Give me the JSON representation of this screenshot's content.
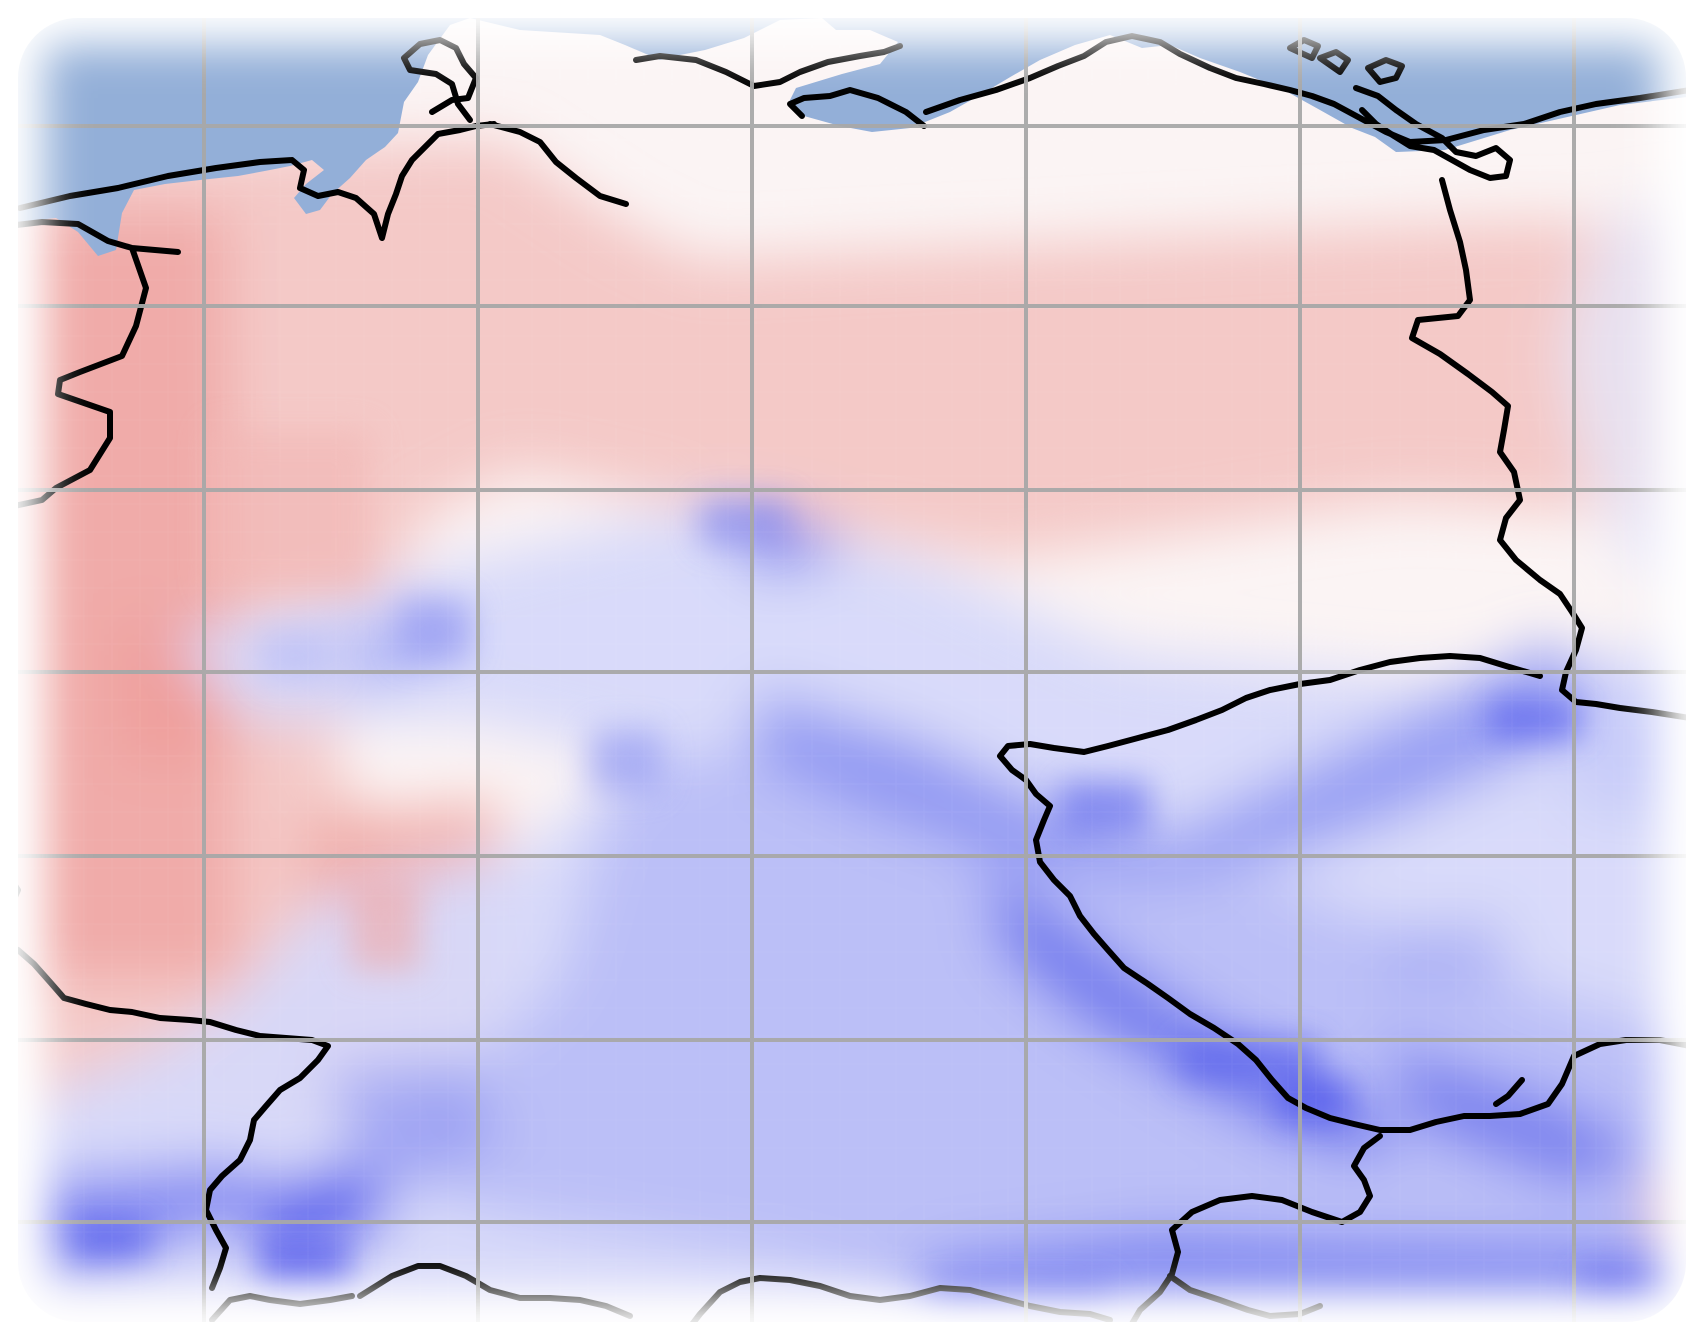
{
  "map": {
    "kind": "gridded-anomaly-field",
    "projection_graticule": true,
    "colors": {
      "sea": "#93afd8",
      "land_neutral": "#fbf4f4",
      "warm": "#f0a9a6",
      "cool": "#6a73ee",
      "cool_strong": "#2b31ef",
      "border_line": "#000000",
      "graticule": "#a8a8a8",
      "vignette": "#ffffff"
    },
    "legend": null,
    "title": "",
    "labels": []
  }
}
